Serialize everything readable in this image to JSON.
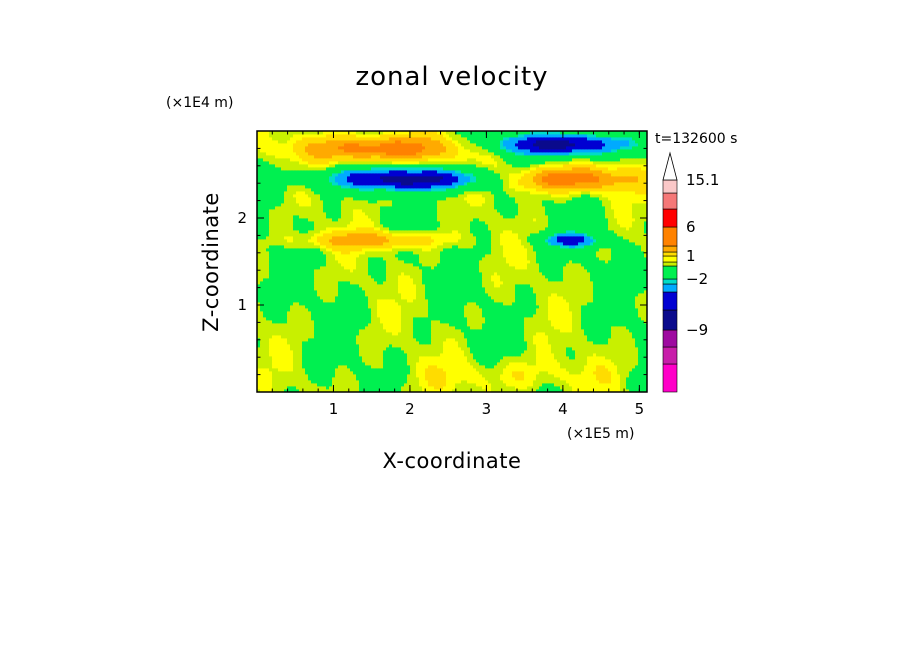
{
  "chart_data": {
    "type": "heatmap",
    "title": "zonal velocity",
    "xlabel": "X-coordinate",
    "ylabel": "Z-coordinate",
    "x_scale_note": "(×1E5 m)",
    "y_scale_note": "(×1E4 m)",
    "time_label": "t=132600 s",
    "x_ticks": [
      "1",
      "2",
      "3",
      "4",
      "5"
    ],
    "y_ticks": [
      "1",
      "2"
    ],
    "xlim": [
      0,
      5.1
    ],
    "ylim": [
      0,
      3
    ],
    "colorbar": {
      "labels": [
        "15.1",
        "6",
        "1",
        "-2",
        "-9"
      ],
      "levels": [
        {
          "color": "#ff00c8",
          "upper": -13
        },
        {
          "color": "#c81eaa",
          "upper": -11
        },
        {
          "color": "#9e0aa0",
          "upper": -9
        },
        {
          "color": "#0a0a8c",
          "upper": -6
        },
        {
          "color": "#0000d2",
          "upper": -4
        },
        {
          "color": "#00aaff",
          "upper": -2.5
        },
        {
          "color": "#00dcc8",
          "upper": -2
        },
        {
          "color": "#00f050",
          "upper": 0
        },
        {
          "color": "#c8f000",
          "upper": 0.5
        },
        {
          "color": "#ffff00",
          "upper": 1
        },
        {
          "color": "#ffdc00",
          "upper": 2
        },
        {
          "color": "#ffaa00",
          "upper": 3
        },
        {
          "color": "#ff8200",
          "upper": 6
        },
        {
          "color": "#ff0000",
          "upper": 9
        },
        {
          "color": "#f57878",
          "upper": 12
        },
        {
          "color": "#fac8c8",
          "upper": 15.1
        }
      ],
      "extend_max_color": "#ffffff"
    },
    "fields": [
      {
        "name": "upper-left easterly jet",
        "x": 2.0,
        "z": 2.45,
        "value": -7,
        "sx": 1.05,
        "sz": 0.12
      },
      {
        "name": "upper-left westerly core",
        "x": 1.6,
        "z": 2.8,
        "value": 4,
        "sx": 1.0,
        "sz": 0.15
      },
      {
        "name": "upper-right easterly jet",
        "x": 4.0,
        "z": 2.85,
        "value": -7,
        "sx": 0.8,
        "sz": 0.12
      },
      {
        "name": "upper-right westerly core",
        "x": 4.0,
        "z": 2.45,
        "value": 4,
        "sx": 0.9,
        "sz": 0.14
      },
      {
        "name": "mid-level easterly patch",
        "x": 4.1,
        "z": 1.75,
        "value": -5,
        "sx": 0.35,
        "sz": 0.08
      },
      {
        "name": "mid-level westerly patch",
        "x": 1.5,
        "z": 1.75,
        "value": 2.5,
        "sx": 0.9,
        "sz": 0.1
      },
      {
        "name": "lower-level westerly",
        "x": 3.3,
        "z": 0.2,
        "value": 0.9,
        "sx": 1.2,
        "sz": 0.2
      }
    ]
  }
}
